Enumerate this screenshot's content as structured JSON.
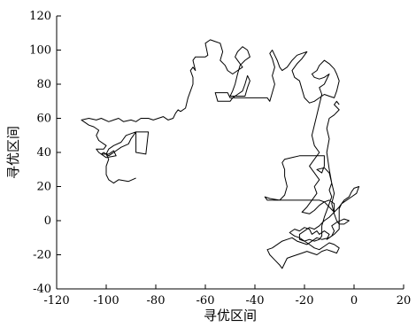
{
  "chart_data": {
    "type": "line",
    "title": "",
    "xlabel": "寻优区间",
    "ylabel": "寻优区间",
    "xlim": [
      -120,
      20
    ],
    "ylim": [
      -40,
      120
    ],
    "xticks": [
      -120,
      -100,
      -80,
      -60,
      -40,
      -20,
      0,
      20
    ],
    "yticks": [
      -40,
      -20,
      0,
      20,
      40,
      60,
      80,
      100,
      120
    ],
    "xtick_labels": [
      "-120",
      "-100",
      "-80",
      "-60",
      "-40",
      "-20",
      "0",
      "20"
    ],
    "ytick_labels": [
      "-40",
      "-20",
      "0",
      "20",
      "40",
      "60",
      "80",
      "100",
      "120"
    ],
    "grid": false,
    "legend": "none",
    "line_color": "#000000",
    "series": [
      {
        "points": [
          [
            -88,
            25
          ],
          [
            -91,
            23
          ],
          [
            -95,
            24
          ],
          [
            -97,
            22
          ],
          [
            -99,
            24
          ],
          [
            -100,
            27
          ],
          [
            -100,
            32
          ],
          [
            -99,
            36
          ],
          [
            -100,
            39
          ],
          [
            -99,
            42
          ],
          [
            -97,
            44
          ],
          [
            -94,
            46
          ],
          [
            -92,
            50
          ],
          [
            -90,
            51
          ],
          [
            -88,
            52
          ],
          [
            -88,
            40
          ],
          [
            -84,
            39
          ],
          [
            -83,
            52
          ],
          [
            -88,
            52
          ],
          [
            -90,
            48
          ],
          [
            -91,
            45
          ],
          [
            -94,
            43
          ],
          [
            -97,
            40
          ],
          [
            -99,
            38
          ],
          [
            -101,
            40
          ],
          [
            -102,
            39
          ],
          [
            -99,
            39
          ],
          [
            -97,
            41
          ],
          [
            -96,
            38
          ],
          [
            -100,
            37
          ],
          [
            -103,
            40
          ],
          [
            -104,
            42
          ],
          [
            -101,
            42
          ],
          [
            -100,
            44
          ],
          [
            -103,
            47
          ],
          [
            -104,
            50
          ],
          [
            -103,
            53
          ],
          [
            -105,
            55
          ],
          [
            -107,
            56
          ],
          [
            -109,
            58
          ],
          [
            -110,
            59
          ],
          [
            -107,
            60
          ],
          [
            -104,
            59
          ],
          [
            -102,
            60
          ],
          [
            -99,
            58
          ],
          [
            -97,
            59
          ],
          [
            -95,
            60
          ],
          [
            -93,
            58
          ],
          [
            -90,
            59
          ],
          [
            -88,
            58
          ],
          [
            -86,
            60
          ],
          [
            -83,
            60
          ],
          [
            -81,
            59
          ],
          [
            -79,
            60
          ],
          [
            -77,
            61
          ],
          [
            -75,
            59
          ],
          [
            -73,
            60
          ],
          [
            -72,
            63
          ],
          [
            -71,
            65
          ],
          [
            -70,
            64
          ],
          [
            -68,
            66
          ],
          [
            -67,
            72
          ],
          [
            -66,
            76
          ],
          [
            -65,
            80
          ],
          [
            -65,
            84
          ],
          [
            -66,
            88
          ],
          [
            -65,
            90
          ],
          [
            -64,
            88
          ],
          [
            -65,
            94
          ],
          [
            -64,
            96
          ],
          [
            -60,
            96
          ],
          [
            -59,
            97
          ],
          [
            -60,
            104
          ],
          [
            -58,
            106
          ],
          [
            -56,
            105
          ],
          [
            -54,
            104
          ],
          [
            -53,
            99
          ],
          [
            -54,
            94
          ],
          [
            -52,
            91
          ],
          [
            -51,
            88
          ],
          [
            -49,
            86
          ],
          [
            -47,
            88
          ],
          [
            -45,
            90
          ],
          [
            -47,
            94
          ],
          [
            -48,
            96
          ],
          [
            -47,
            99
          ],
          [
            -45,
            102
          ],
          [
            -43,
            100
          ],
          [
            -42,
            96
          ],
          [
            -44,
            94
          ],
          [
            -46,
            91
          ],
          [
            -47,
            86
          ],
          [
            -48,
            80
          ],
          [
            -49,
            76
          ],
          [
            -50,
            73
          ],
          [
            -47,
            73
          ],
          [
            -44,
            73
          ],
          [
            -43,
            78
          ],
          [
            -42,
            82
          ],
          [
            -43,
            85
          ],
          [
            -44,
            80
          ],
          [
            -45,
            76
          ],
          [
            -47,
            74
          ],
          [
            -49,
            72
          ],
          [
            -50,
            70
          ],
          [
            -55,
            70
          ],
          [
            -56,
            75
          ],
          [
            -51,
            75
          ],
          [
            -50,
            72
          ],
          [
            -35,
            72
          ],
          [
            -34,
            70
          ],
          [
            -33,
            75
          ],
          [
            -32,
            80
          ],
          [
            -33,
            85
          ],
          [
            -32,
            90
          ],
          [
            -33,
            95
          ],
          [
            -34,
            98
          ],
          [
            -33,
            100
          ],
          [
            -32,
            97
          ],
          [
            -31,
            94
          ],
          [
            -30,
            90
          ],
          [
            -29,
            88
          ],
          [
            -27,
            90
          ],
          [
            -25,
            94
          ],
          [
            -23,
            97
          ],
          [
            -21,
            98
          ],
          [
            -19,
            99
          ],
          [
            -21,
            95
          ],
          [
            -23,
            92
          ],
          [
            -25,
            88
          ],
          [
            -24,
            84
          ],
          [
            -22,
            82
          ],
          [
            -21,
            77
          ],
          [
            -20,
            72
          ],
          [
            -18,
            69
          ],
          [
            -16,
            70
          ],
          [
            -14,
            72
          ],
          [
            -12,
            74
          ],
          [
            -10,
            73
          ],
          [
            -8,
            72
          ],
          [
            -7,
            76
          ],
          [
            -6,
            82
          ],
          [
            -7,
            86
          ],
          [
            -8,
            89
          ],
          [
            -10,
            92
          ],
          [
            -12,
            94
          ],
          [
            -14,
            91
          ],
          [
            -15,
            88
          ],
          [
            -17,
            86
          ],
          [
            -16,
            84
          ],
          [
            -14,
            83
          ],
          [
            -12,
            84
          ],
          [
            -10,
            86
          ],
          [
            -12,
            80
          ],
          [
            -14,
            78
          ],
          [
            -13,
            74
          ],
          [
            -14,
            68
          ],
          [
            -15,
            62
          ],
          [
            -16,
            56
          ],
          [
            -17,
            50
          ],
          [
            -16,
            44
          ],
          [
            -14,
            40
          ],
          [
            -16,
            36
          ],
          [
            -18,
            32
          ],
          [
            -16,
            28
          ],
          [
            -14,
            24
          ],
          [
            -16,
            20
          ],
          [
            -15,
            16
          ],
          [
            -17,
            12
          ],
          [
            -19,
            8
          ],
          [
            -21,
            5
          ],
          [
            -18,
            4
          ],
          [
            -16,
            6
          ],
          [
            -14,
            9
          ],
          [
            -12,
            11
          ],
          [
            -10,
            8
          ],
          [
            -8,
            5
          ],
          [
            -6,
            8
          ],
          [
            -4,
            12
          ],
          [
            -2,
            14
          ],
          [
            -1,
            17
          ],
          [
            0,
            19
          ],
          [
            2,
            20
          ],
          [
            1,
            16
          ],
          [
            -1,
            14
          ],
          [
            -3,
            12
          ],
          [
            -5,
            10
          ],
          [
            -6,
            7
          ],
          [
            -6,
            0
          ],
          [
            -6,
            -5
          ],
          [
            -8,
            -8
          ],
          [
            -10,
            -10
          ],
          [
            -13,
            -11
          ],
          [
            -15,
            -10
          ],
          [
            -17,
            -12
          ],
          [
            -19,
            -14
          ],
          [
            -21,
            -13
          ],
          [
            -23,
            -12
          ],
          [
            -25,
            -10
          ],
          [
            -27,
            -11
          ],
          [
            -29,
            -12
          ],
          [
            -31,
            -14
          ],
          [
            -33,
            -16
          ],
          [
            -35,
            -17
          ],
          [
            -34,
            -20
          ],
          [
            -32,
            -23
          ],
          [
            -30,
            -26
          ],
          [
            -29,
            -28
          ],
          [
            -28,
            -25
          ],
          [
            -27,
            -22
          ],
          [
            -25,
            -21
          ],
          [
            -23,
            -20
          ],
          [
            -21,
            -19
          ],
          [
            -19,
            -18
          ],
          [
            -17,
            -19
          ],
          [
            -15,
            -20
          ],
          [
            -13,
            -18
          ],
          [
            -11,
            -17
          ],
          [
            -9,
            -18
          ],
          [
            -7,
            -19
          ],
          [
            -6,
            -16
          ],
          [
            -8,
            -14
          ],
          [
            -10,
            -13
          ],
          [
            -12,
            -15
          ],
          [
            -14,
            -17
          ],
          [
            -16,
            -16
          ],
          [
            -18,
            -14
          ],
          [
            -20,
            -12
          ],
          [
            -22,
            -11
          ],
          [
            -22,
            -8
          ],
          [
            -20,
            -6
          ],
          [
            -18,
            -4
          ],
          [
            -16,
            -5
          ],
          [
            -14,
            -3
          ],
          [
            -12,
            0
          ],
          [
            -10,
            2
          ],
          [
            -8,
            5
          ],
          [
            -8,
            10
          ],
          [
            -10,
            12
          ],
          [
            -12,
            11
          ],
          [
            -14,
            12
          ],
          [
            -16,
            12
          ],
          [
            -35,
            12
          ],
          [
            -36,
            14
          ],
          [
            -34,
            13
          ],
          [
            -30,
            12
          ],
          [
            -28,
            15
          ],
          [
            -27,
            20
          ],
          [
            -28,
            26
          ],
          [
            -28,
            30
          ],
          [
            -29,
            34
          ],
          [
            -28,
            36
          ],
          [
            -25,
            37
          ],
          [
            -22,
            38
          ],
          [
            -20,
            38
          ],
          [
            -15,
            38
          ],
          [
            -12,
            38
          ],
          [
            -12,
            32
          ],
          [
            -13,
            28
          ],
          [
            -15,
            30
          ],
          [
            -12,
            31
          ],
          [
            -10,
            28
          ],
          [
            -9,
            22
          ],
          [
            -8,
            16
          ],
          [
            -9,
            10
          ],
          [
            -8,
            4
          ],
          [
            -7,
            0
          ],
          [
            -6,
            -2
          ],
          [
            -4,
            -2
          ],
          [
            -2,
            0
          ],
          [
            -4,
            1
          ],
          [
            -7,
            -1
          ],
          [
            -9,
            -3
          ],
          [
            -8,
            -6
          ],
          [
            -9,
            -9
          ],
          [
            -11,
            -11
          ],
          [
            -10,
            -8
          ],
          [
            -12,
            -6
          ],
          [
            -14,
            -8
          ],
          [
            -15,
            -6
          ],
          [
            -17,
            -8
          ],
          [
            -18,
            -5
          ],
          [
            -20,
            -4
          ],
          [
            -22,
            -6
          ],
          [
            -24,
            -5
          ],
          [
            -26,
            -7
          ],
          [
            -24,
            -9
          ],
          [
            -22,
            -10
          ],
          [
            -20,
            -12
          ],
          [
            -18,
            -11
          ],
          [
            -16,
            -12
          ],
          [
            -14,
            -11
          ],
          [
            -13,
            -9
          ],
          [
            -13,
            -3
          ],
          [
            -12,
            2
          ],
          [
            -11,
            6
          ],
          [
            -10,
            10
          ],
          [
            -9,
            14
          ],
          [
            -10,
            18
          ],
          [
            -9,
            22
          ],
          [
            -10,
            30
          ],
          [
            -11,
            40
          ],
          [
            -10,
            48
          ],
          [
            -11,
            54
          ],
          [
            -10,
            60
          ],
          [
            -8,
            62
          ],
          [
            -6,
            65
          ],
          [
            -8,
            68
          ],
          [
            -7,
            70
          ],
          [
            -6,
            68
          ]
        ]
      }
    ]
  }
}
